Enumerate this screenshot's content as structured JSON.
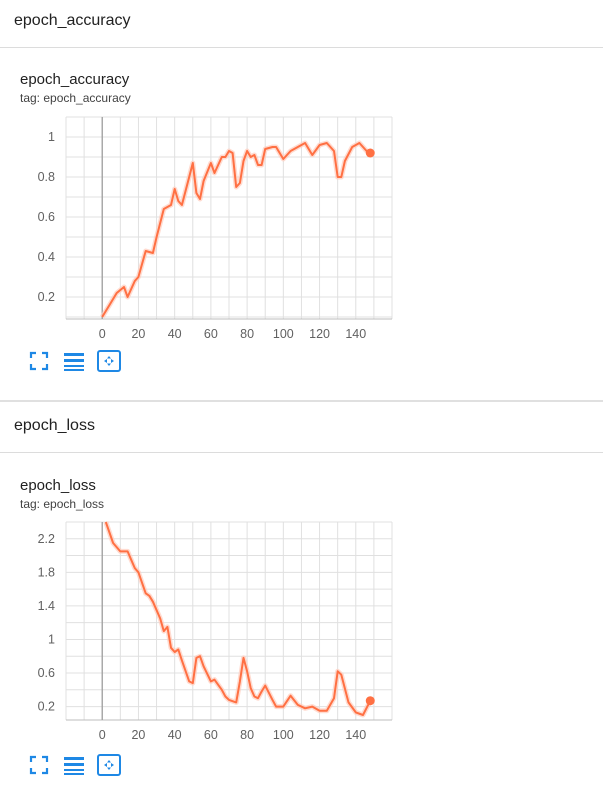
{
  "sections": [
    {
      "header": "epoch_accuracy",
      "card_title": "epoch_accuracy",
      "tag": "tag: epoch_accuracy",
      "tools": [
        "fit-domain-icon",
        "toggle-log-icon",
        "expand-chart-icon"
      ]
    },
    {
      "header": "epoch_loss",
      "card_title": "epoch_loss",
      "tag": "tag: epoch_loss",
      "tools": [
        "fit-domain-icon",
        "toggle-log-icon",
        "expand-chart-icon"
      ]
    }
  ],
  "colors": {
    "smoothed": "#ff7043",
    "raw": "#ffccbc",
    "grid": "#e0e0e0",
    "axis_zero": "#9e9e9e",
    "tool_blue": "#1e88e5"
  },
  "chart_data": [
    {
      "type": "line",
      "title": "epoch_accuracy",
      "xlim": [
        -20,
        160
      ],
      "ylim": [
        0.09,
        1.1
      ],
      "x_ticks": [
        0,
        20,
        40,
        60,
        80,
        100,
        120,
        140
      ],
      "x_tick_labels": [
        "0",
        "20",
        "40",
        "60",
        "80",
        "100",
        "120",
        "140"
      ],
      "y_ticks": [
        0.2,
        0.4,
        0.6,
        0.8,
        1
      ],
      "y_tick_labels": [
        "0.2",
        "0.4",
        "0.6",
        "0.8",
        "1"
      ],
      "grid": true,
      "series": [
        {
          "role": "smoothed",
          "x": [
            0,
            4,
            8,
            12,
            14,
            18,
            20,
            24,
            28,
            30,
            34,
            38,
            40,
            42,
            44,
            48,
            50,
            52,
            54,
            56,
            60,
            62,
            66,
            68,
            70,
            72,
            74,
            76,
            78,
            80,
            82,
            84,
            86,
            88,
            90,
            94,
            96,
            100,
            104,
            108,
            112,
            116,
            120,
            124,
            128,
            130,
            132,
            134,
            138,
            142,
            146,
            148
          ],
          "y": [
            0.1,
            0.16,
            0.22,
            0.25,
            0.2,
            0.28,
            0.3,
            0.43,
            0.42,
            0.5,
            0.64,
            0.66,
            0.74,
            0.68,
            0.66,
            0.8,
            0.87,
            0.72,
            0.69,
            0.78,
            0.87,
            0.82,
            0.9,
            0.9,
            0.93,
            0.92,
            0.75,
            0.77,
            0.88,
            0.93,
            0.9,
            0.91,
            0.86,
            0.86,
            0.94,
            0.95,
            0.95,
            0.89,
            0.93,
            0.95,
            0.97,
            0.91,
            0.96,
            0.97,
            0.93,
            0.8,
            0.8,
            0.88,
            0.95,
            0.97,
            0.93,
            0.92
          ]
        }
      ],
      "last_point": {
        "x": 148,
        "y": 0.92
      }
    },
    {
      "type": "line",
      "title": "epoch_loss",
      "xlim": [
        -20,
        160
      ],
      "ylim": [
        0.04,
        2.4
      ],
      "x_ticks": [
        0,
        20,
        40,
        60,
        80,
        100,
        120,
        140
      ],
      "x_tick_labels": [
        "0",
        "20",
        "40",
        "60",
        "80",
        "100",
        "120",
        "140"
      ],
      "y_ticks": [
        0.2,
        0.6,
        1,
        1.4,
        1.8,
        2.2
      ],
      "y_tick_labels": [
        "0.2",
        "0.6",
        "1",
        "1.4",
        "1.8",
        "2.2"
      ],
      "grid": true,
      "series": [
        {
          "role": "smoothed",
          "x": [
            2,
            6,
            10,
            14,
            16,
            18,
            20,
            24,
            26,
            28,
            32,
            34,
            36,
            38,
            40,
            42,
            44,
            48,
            50,
            52,
            54,
            56,
            60,
            62,
            66,
            68,
            70,
            74,
            76,
            78,
            80,
            82,
            84,
            86,
            88,
            90,
            94,
            96,
            100,
            104,
            108,
            112,
            116,
            120,
            124,
            128,
            130,
            132,
            136,
            140,
            144,
            148
          ],
          "y": [
            2.4,
            2.15,
            2.05,
            2.05,
            1.95,
            1.85,
            1.8,
            1.55,
            1.52,
            1.45,
            1.25,
            1.1,
            1.15,
            0.9,
            0.85,
            0.88,
            0.75,
            0.5,
            0.48,
            0.78,
            0.8,
            0.68,
            0.5,
            0.52,
            0.4,
            0.32,
            0.28,
            0.25,
            0.5,
            0.78,
            0.62,
            0.42,
            0.32,
            0.3,
            0.38,
            0.45,
            0.28,
            0.2,
            0.2,
            0.33,
            0.22,
            0.18,
            0.2,
            0.15,
            0.15,
            0.3,
            0.62,
            0.58,
            0.25,
            0.13,
            0.1,
            0.27
          ]
        }
      ],
      "last_point": {
        "x": 148,
        "y": 0.27
      }
    }
  ]
}
